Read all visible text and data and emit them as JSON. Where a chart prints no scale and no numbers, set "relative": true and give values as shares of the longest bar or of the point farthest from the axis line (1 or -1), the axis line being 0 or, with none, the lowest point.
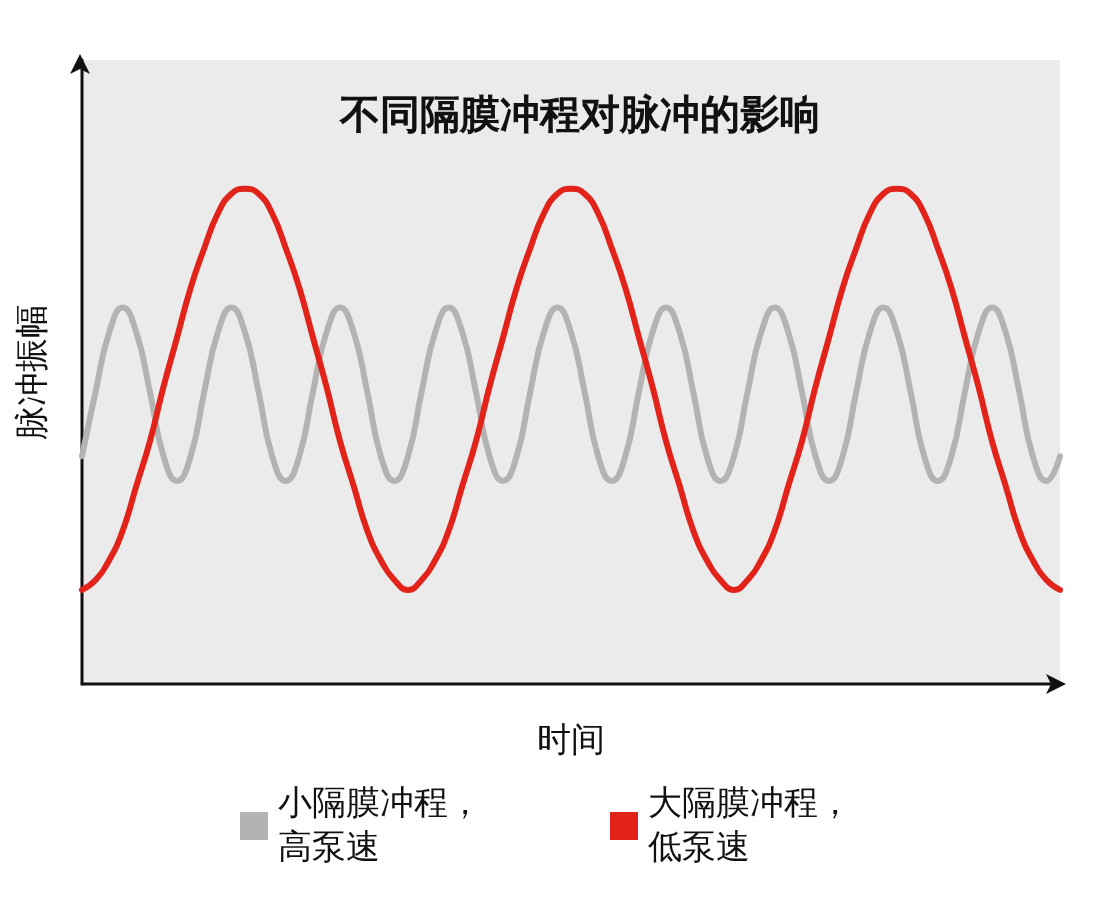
{
  "chart_data": {
    "type": "line",
    "title": "不同隔膜冲程对脉冲的影响",
    "xlabel": "时间",
    "ylabel": "脉冲振幅",
    "relative": true,
    "line_style": "solid",
    "grid": false,
    "legend": "bottom",
    "categories": [
      null,
      null,
      null,
      null,
      null,
      null,
      null,
      null,
      null,
      null,
      null,
      null,
      null,
      null,
      null,
      null,
      null,
      null,
      null,
      null,
      null,
      null,
      null,
      null,
      null,
      null,
      null,
      null,
      null,
      null,
      null,
      null,
      null,
      null,
      null,
      null,
      null,
      null,
      null,
      null,
      null,
      null,
      null,
      null,
      null,
      null,
      null,
      null,
      null,
      null,
      null,
      null,
      null,
      null,
      null,
      null,
      null,
      null,
      null,
      null,
      null,
      null,
      null,
      null,
      null,
      null,
      null,
      null,
      null,
      null,
      null,
      null,
      null
    ],
    "series": [
      {
        "name": "小隔膜冲程，高泵速",
        "color": "#b3b3b3",
        "values": [
          0.46,
          0.59,
          0.71,
          0.76,
          0.71,
          0.59,
          0.46,
          0.41,
          0.46,
          0.59,
          0.71,
          0.76,
          0.71,
          0.59,
          0.46,
          0.41,
          0.46,
          0.59,
          0.71,
          0.76,
          0.71,
          0.59,
          0.46,
          0.41,
          0.46,
          0.59,
          0.71,
          0.76,
          0.71,
          0.59,
          0.46,
          0.41,
          0.46,
          0.59,
          0.71,
          0.76,
          0.71,
          0.59,
          0.46,
          0.41,
          0.46,
          0.59,
          0.71,
          0.76,
          0.71,
          0.59,
          0.46,
          0.41,
          0.46,
          0.59,
          0.71,
          0.76,
          0.71,
          0.59,
          0.46,
          0.41,
          0.46,
          0.59,
          0.71,
          0.76,
          0.71,
          0.59,
          0.46,
          0.41,
          0.46,
          0.59,
          0.71,
          0.76,
          0.71,
          0.59,
          0.46,
          0.41,
          0.46
        ]
      },
      {
        "name": "大隔膜冲程，低泵速",
        "color": "#e2231a",
        "values": [
          0.19,
          0.21,
          0.25,
          0.31,
          0.4,
          0.49,
          0.6,
          0.7,
          0.8,
          0.88,
          0.95,
          0.99,
          1.0,
          0.99,
          0.95,
          0.88,
          0.8,
          0.7,
          0.6,
          0.49,
          0.4,
          0.31,
          0.25,
          0.21,
          0.19,
          0.21,
          0.25,
          0.31,
          0.4,
          0.49,
          0.6,
          0.7,
          0.8,
          0.88,
          0.95,
          0.99,
          1.0,
          0.99,
          0.95,
          0.88,
          0.8,
          0.7,
          0.6,
          0.49,
          0.4,
          0.31,
          0.25,
          0.21,
          0.19,
          0.21,
          0.25,
          0.31,
          0.4,
          0.49,
          0.6,
          0.7,
          0.8,
          0.88,
          0.95,
          0.99,
          1.0,
          0.99,
          0.95,
          0.88,
          0.8,
          0.7,
          0.6,
          0.49,
          0.4,
          0.31,
          0.25,
          0.21,
          0.19
        ]
      }
    ]
  }
}
